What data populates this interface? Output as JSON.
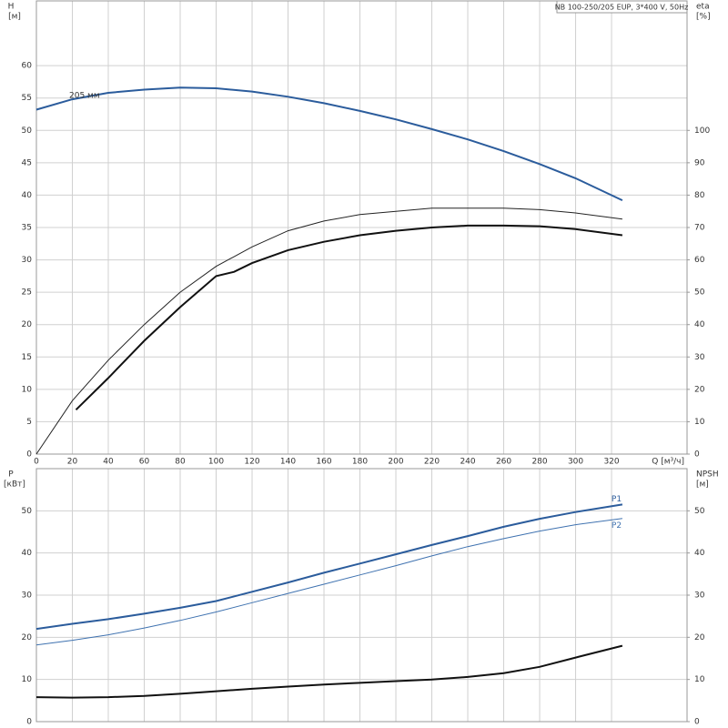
{
  "chart_data": [
    {
      "type": "line",
      "title": "NB 100-250/205 EUP, 3*400 V, 50Hz",
      "y_label": "H",
      "y_unit": "[м]",
      "y2_label": "eta",
      "y2_unit": "[%]",
      "x_label": "Q [м³/ч]",
      "annotation": "205 мм",
      "xlim": [
        0,
        362
      ],
      "xticks": [
        0,
        20,
        40,
        60,
        80,
        100,
        120,
        140,
        160,
        180,
        200,
        220,
        240,
        260,
        280,
        300,
        320
      ],
      "ylim": [
        0,
        70
      ],
      "yticks": [
        0,
        5,
        10,
        15,
        20,
        25,
        30,
        35,
        40,
        45,
        50,
        55,
        60
      ],
      "y2lim": [
        0,
        140
      ],
      "y2ticks": [
        0,
        10,
        20,
        30,
        40,
        50,
        60,
        70,
        80,
        90,
        100
      ],
      "grid": true,
      "series": [
        {
          "color": "#2b5c9c",
          "width": 2,
          "x": [
            0,
            20,
            40,
            60,
            80,
            100,
            120,
            140,
            160,
            180,
            200,
            220,
            240,
            260,
            280,
            300,
            326
          ],
          "values": [
            53.2,
            54.8,
            55.8,
            56.3,
            56.6,
            56.5,
            56.0,
            55.2,
            54.2,
            53.0,
            51.7,
            50.2,
            48.6,
            46.8,
            44.8,
            42.6,
            39.2
          ]
        },
        {
          "color": "#222222",
          "width": 1,
          "axis": "y2",
          "x": [
            0,
            20,
            40,
            60,
            80,
            100,
            120,
            140,
            160,
            180,
            200,
            220,
            240,
            260,
            280,
            300,
            326
          ],
          "values": [
            0,
            16.5,
            29,
            40,
            50,
            58,
            64,
            69,
            72,
            74,
            75,
            76,
            76,
            76,
            75.5,
            74.5,
            72.6
          ]
        },
        {
          "color": "#111111",
          "width": 2,
          "axis": "y2",
          "x": [
            22,
            40,
            60,
            80,
            100,
            110,
            120,
            140,
            160,
            180,
            200,
            220,
            240,
            260,
            280,
            300,
            326
          ],
          "values": [
            13.7,
            23.5,
            35,
            45.4,
            55,
            56.3,
            59,
            63,
            65.6,
            67.6,
            69,
            70,
            70.6,
            70.6,
            70.4,
            69.5,
            67.6
          ]
        }
      ]
    },
    {
      "type": "line",
      "y_label": "P",
      "y_unit": "[кВт]",
      "y2_label": "NPSH",
      "y2_unit": "[м]",
      "xlim": [
        0,
        362
      ],
      "ylim": [
        0,
        60
      ],
      "yticks": [
        0,
        10,
        20,
        30,
        40,
        50
      ],
      "y2lim": [
        0,
        60
      ],
      "y2ticks": [
        0,
        10,
        20,
        30,
        40,
        50
      ],
      "grid": true,
      "series": [
        {
          "name": "P1",
          "color": "#2b5c9c",
          "width": 2,
          "x": [
            0,
            20,
            40,
            60,
            80,
            100,
            120,
            140,
            160,
            180,
            200,
            220,
            240,
            260,
            280,
            300,
            326
          ],
          "values": [
            22,
            23.2,
            24.3,
            25.6,
            27,
            28.6,
            30.8,
            33,
            35.3,
            37.5,
            39.7,
            41.9,
            44,
            46.2,
            48.1,
            49.7,
            51.5
          ]
        },
        {
          "name": "P2",
          "color": "#3f72b0",
          "width": 1,
          "x": [
            0,
            20,
            40,
            60,
            80,
            100,
            120,
            140,
            160,
            180,
            200,
            220,
            240,
            260,
            280,
            300,
            326
          ],
          "values": [
            18.2,
            19.3,
            20.6,
            22.2,
            24,
            26,
            28.2,
            30.4,
            32.6,
            34.8,
            37,
            39.3,
            41.5,
            43.4,
            45.2,
            46.7,
            48.2
          ]
        },
        {
          "color": "#111111",
          "width": 2,
          "axis": "y2",
          "x": [
            0,
            20,
            40,
            60,
            80,
            100,
            120,
            140,
            160,
            180,
            200,
            220,
            240,
            260,
            280,
            300,
            326
          ],
          "values": [
            5.8,
            5.7,
            5.8,
            6.1,
            6.6,
            7.2,
            7.8,
            8.3,
            8.8,
            9.2,
            9.6,
            10.0,
            10.6,
            11.5,
            13.0,
            15.2,
            18.0
          ]
        }
      ]
    }
  ]
}
